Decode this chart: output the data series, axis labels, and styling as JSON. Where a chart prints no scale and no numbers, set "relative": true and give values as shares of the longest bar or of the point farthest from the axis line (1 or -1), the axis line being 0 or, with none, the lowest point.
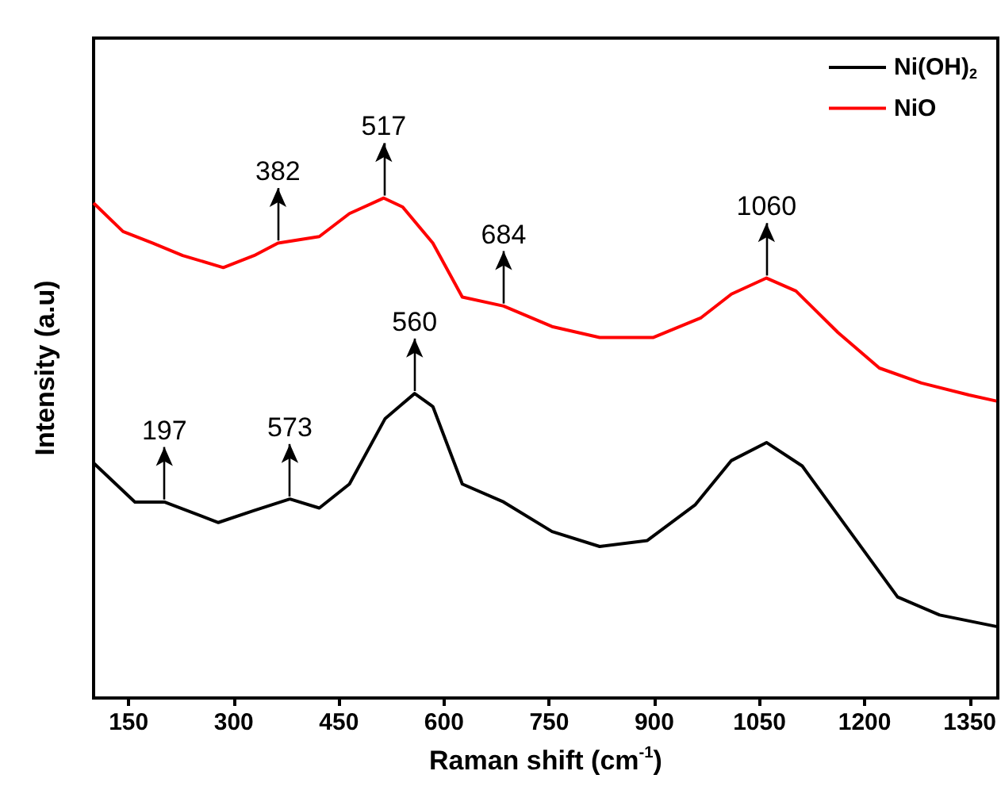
{
  "chart_data": {
    "type": "line",
    "relative": true,
    "xlabel": "Raman shift (cm$^{-1}$)",
    "ylabel": "Intensity (a.u)",
    "xlim": [
      100,
      1390
    ],
    "xticks": [
      150,
      300,
      450,
      600,
      750,
      900,
      1050,
      1200,
      1350
    ],
    "grid": false,
    "legend": "top right",
    "marker": "none",
    "line_style": "solid",
    "series": [
      {
        "name": "Ni(OH)$_{2}$",
        "color": "#000000",
        "x": [
          100,
          159,
          201,
          278,
          329,
          380,
          422,
          465,
          516,
          558,
          584,
          626,
          685,
          754,
          822,
          890,
          958,
          1010,
          1060,
          1111,
          1179,
          1247,
          1307,
          1388
        ],
        "values": [
          0.47,
          0.392,
          0.392,
          0.351,
          0.375,
          0.398,
          0.38,
          0.428,
          0.559,
          0.609,
          0.583,
          0.428,
          0.392,
          0.333,
          0.303,
          0.315,
          0.386,
          0.475,
          0.511,
          0.464,
          0.333,
          0.202,
          0.166,
          0.143
        ]
      },
      {
        "name": "NiO",
        "color": "#ff0000",
        "x": [
          100,
          142,
          184,
          227,
          285,
          329,
          363,
          422,
          465,
          514,
          541,
          584,
          626,
          685,
          754,
          822,
          898,
          966,
          1010,
          1060,
          1102,
          1162,
          1221,
          1281,
          1349,
          1388
        ],
        "values": [
          0.99,
          0.933,
          0.91,
          0.885,
          0.861,
          0.885,
          0.91,
          0.923,
          0.969,
          1.0,
          0.982,
          0.91,
          0.802,
          0.784,
          0.743,
          0.721,
          0.721,
          0.76,
          0.808,
          0.84,
          0.814,
          0.731,
          0.66,
          0.63,
          0.606,
          0.594
        ]
      }
    ],
    "annotations": [
      {
        "text": "197",
        "x": 201,
        "y": 0.392
      },
      {
        "text": "573",
        "x": 380,
        "y": 0.398
      },
      {
        "text": "560",
        "x": 558,
        "y": 0.609
      },
      {
        "text": "684",
        "x": 685,
        "y": 0.784
      },
      {
        "text": "1060",
        "x": 1060,
        "y": 0.84
      },
      {
        "text": "382",
        "x": 363,
        "y": 0.91
      },
      {
        "text": "517",
        "x": 514,
        "y": 1.0
      }
    ]
  }
}
